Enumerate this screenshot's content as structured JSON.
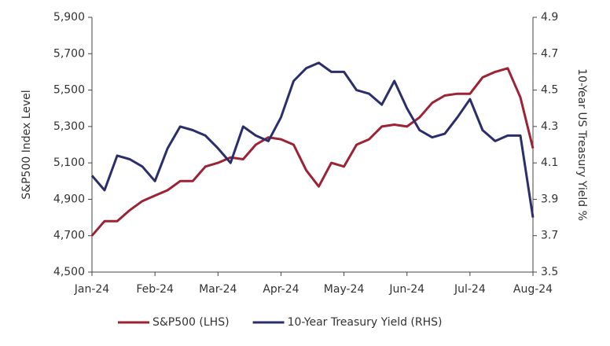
{
  "chart_data": {
    "type": "line",
    "categories": [
      "Jan-24",
      null,
      null,
      null,
      null,
      "Feb-24",
      null,
      null,
      null,
      null,
      "Mar-24",
      null,
      null,
      null,
      null,
      "Apr-24",
      null,
      null,
      null,
      null,
      "May-24",
      null,
      null,
      null,
      null,
      "Jun-24",
      null,
      null,
      null,
      null,
      "Jul-24",
      null,
      null,
      null,
      null,
      "Aug-24"
    ],
    "series": [
      {
        "name": "S&P500 (LHS)",
        "color": "#9b2335",
        "axis": "y",
        "values": [
          4700,
          4780,
          4780,
          4840,
          4890,
          4920,
          4950,
          5000,
          5000,
          5080,
          5100,
          5130,
          5120,
          5200,
          5240,
          5230,
          5200,
          5060,
          4970,
          5100,
          5080,
          5200,
          5230,
          5300,
          5310,
          5300,
          5350,
          5430,
          5470,
          5480,
          5480,
          5570,
          5600,
          5620,
          5460,
          5180
        ]
      },
      {
        "name": "10-Year Treasury Yield (RHS)",
        "color": "#2b2e6b",
        "axis": "y2",
        "values": [
          4.03,
          3.95,
          4.14,
          4.12,
          4.08,
          4.0,
          4.18,
          4.3,
          4.28,
          4.25,
          4.18,
          4.1,
          4.3,
          4.25,
          4.22,
          4.35,
          4.55,
          4.62,
          4.65,
          4.6,
          4.6,
          4.5,
          4.48,
          4.42,
          4.55,
          4.4,
          4.28,
          4.24,
          4.26,
          4.35,
          4.45,
          4.28,
          4.22,
          4.25,
          4.25,
          3.8
        ]
      }
    ],
    "y_label": "S&P500 Index Level",
    "y2_label": "10-Year US Treasury Yield %",
    "ylim": [
      4500,
      5900
    ],
    "yticks": [
      {
        "value": 4500,
        "label": "4,500"
      },
      {
        "value": 4700,
        "label": "4,700"
      },
      {
        "value": 4900,
        "label": "4,900"
      },
      {
        "value": 5100,
        "label": "5,100"
      },
      {
        "value": 5300,
        "label": "5,300"
      },
      {
        "value": 5500,
        "label": "5,500"
      },
      {
        "value": 5700,
        "label": "5,700"
      },
      {
        "value": 5900,
        "label": "5,900"
      }
    ],
    "y2lim": [
      3.5,
      4.9
    ],
    "y2ticks": [
      3.5,
      3.7,
      3.9,
      4.1,
      4.3,
      4.5,
      4.7,
      4.9
    ],
    "grid": false,
    "legend": "bottom"
  }
}
